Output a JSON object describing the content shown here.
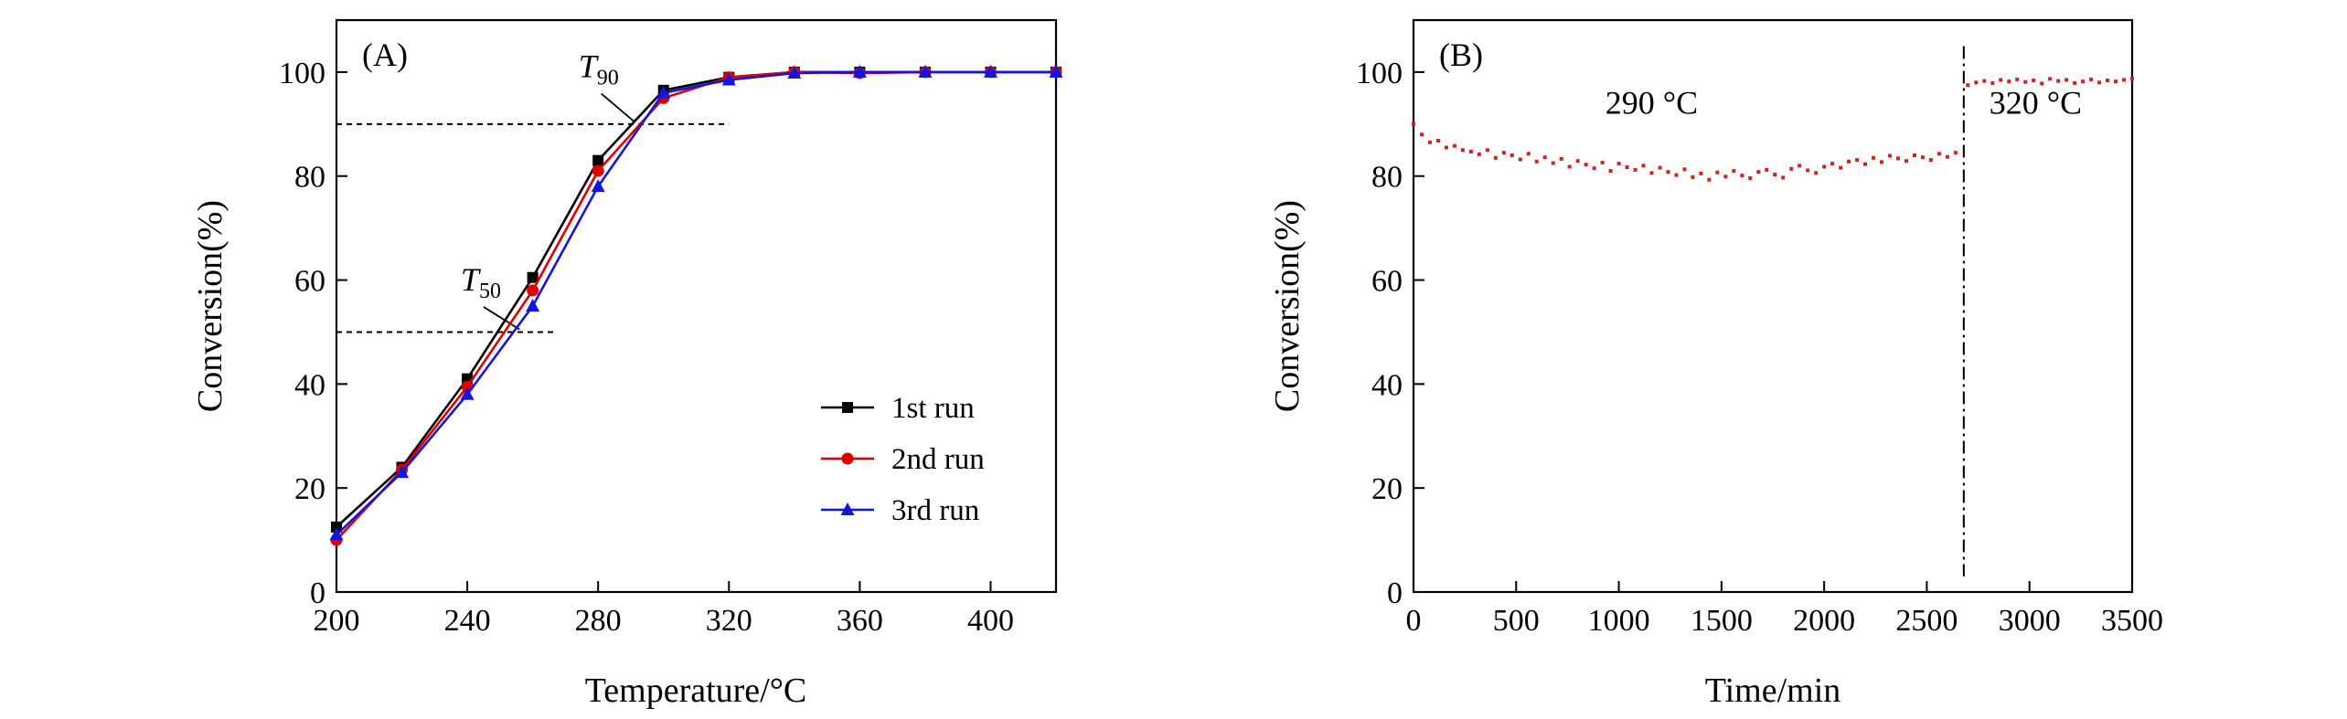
{
  "chart_data": [
    {
      "type": "line",
      "panel_label": "(A)",
      "title": "",
      "xlabel": "Temperature/°C",
      "ylabel": "Conversion(%)",
      "xlim": [
        200,
        420
      ],
      "ylim": [
        0,
        110
      ],
      "xticks": [
        200,
        240,
        280,
        320,
        360,
        400
      ],
      "yticks": [
        0,
        20,
        40,
        60,
        80,
        100
      ],
      "grid": false,
      "legend_position": "lower-right",
      "x": [
        200,
        220,
        240,
        260,
        280,
        300,
        320,
        340,
        360,
        380,
        400,
        420
      ],
      "series": [
        {
          "name": "1st run",
          "color": "#000000",
          "marker": "square",
          "values": [
            12.5,
            24,
            41,
            60.5,
            83,
            96.5,
            99,
            100,
            100,
            100,
            100,
            100
          ]
        },
        {
          "name": "2nd run",
          "color": "#e00000",
          "marker": "circle",
          "values": [
            10,
            23.5,
            39.5,
            58,
            81,
            95,
            99,
            100,
            99.8,
            100,
            100,
            100
          ]
        },
        {
          "name": "3rd run",
          "color": "#1515e0",
          "marker": "triangle",
          "values": [
            11,
            23,
            38,
            55,
            78,
            96,
            98.5,
            99.8,
            100,
            100,
            100,
            100
          ]
        }
      ],
      "reference_lines": [
        {
          "label": "T",
          "subscript": "90",
          "y": 90,
          "x_start": 200,
          "x_end": 320,
          "arrow_to": [
            291,
            90.5
          ],
          "label_at": [
            274,
            99
          ]
        },
        {
          "label": "T",
          "subscript": "50",
          "y": 50,
          "x_start": 200,
          "x_end": 267,
          "arrow_to": [
            256,
            50.5
          ],
          "label_at": [
            238,
            58
          ]
        }
      ]
    },
    {
      "type": "scatter",
      "panel_label": "(B)",
      "title": "",
      "xlabel": "Time/min",
      "ylabel": "Conversion(%)",
      "xlim": [
        0,
        3500
      ],
      "ylim": [
        0,
        110
      ],
      "xticks": [
        0,
        500,
        1000,
        1500,
        2000,
        2500,
        3000,
        3500
      ],
      "yticks": [
        0,
        20,
        40,
        60,
        80,
        100
      ],
      "grid": false,
      "series_color": "#d42020",
      "x": [
        0,
        40,
        80,
        120,
        160,
        200,
        240,
        280,
        320,
        360,
        400,
        440,
        480,
        520,
        560,
        600,
        640,
        680,
        720,
        760,
        800,
        840,
        880,
        920,
        960,
        1000,
        1040,
        1080,
        1120,
        1160,
        1200,
        1240,
        1280,
        1320,
        1360,
        1400,
        1440,
        1480,
        1520,
        1560,
        1600,
        1640,
        1680,
        1720,
        1760,
        1800,
        1840,
        1880,
        1920,
        1960,
        2000,
        2040,
        2080,
        2120,
        2160,
        2200,
        2240,
        2280,
        2320,
        2360,
        2400,
        2440,
        2480,
        2520,
        2560,
        2600,
        2640,
        2700,
        2740,
        2780,
        2820,
        2860,
        2900,
        2940,
        2980,
        3020,
        3060,
        3100,
        3140,
        3180,
        3220,
        3260,
        3300,
        3340,
        3380,
        3420,
        3460,
        3500
      ],
      "y": [
        90,
        88,
        86.5,
        86.8,
        85.5,
        85.8,
        85,
        84.7,
        84.2,
        85,
        83.5,
        84.5,
        84,
        83.2,
        84.3,
        82.8,
        83.6,
        82.5,
        83.3,
        81.8,
        82.9,
        82.2,
        81.5,
        82.6,
        81,
        82.4,
        81.7,
        81.2,
        82,
        80.6,
        81.6,
        80.8,
        80.2,
        81.3,
        79.8,
        80.5,
        79.3,
        80.7,
        79.9,
        81,
        80.1,
        79.6,
        80.8,
        81.2,
        80.3,
        79.7,
        81.4,
        82,
        81.1,
        80.6,
        81.8,
        82.4,
        81.6,
        82.8,
        83.1,
        82.3,
        83.5,
        82.7,
        83.9,
        83.4,
        82.9,
        84,
        83.6,
        83.1,
        84.3,
        83.7,
        84.5,
        97.5,
        98,
        98.3,
        97.9,
        98.5,
        98.2,
        98.6,
        98.1,
        98.4,
        97.8,
        98.7,
        98.3,
        98.5,
        97.9,
        98.2,
        98.6,
        98,
        98.4,
        98.2,
        98.5,
        98.7
      ],
      "vertical_line": {
        "x": 2680,
        "style": "dash-dot"
      },
      "annotations": [
        {
          "text": "290 °C",
          "x": 1160,
          "y": 92
        },
        {
          "text": "320 °C",
          "x": 3030,
          "y": 92
        }
      ]
    }
  ]
}
